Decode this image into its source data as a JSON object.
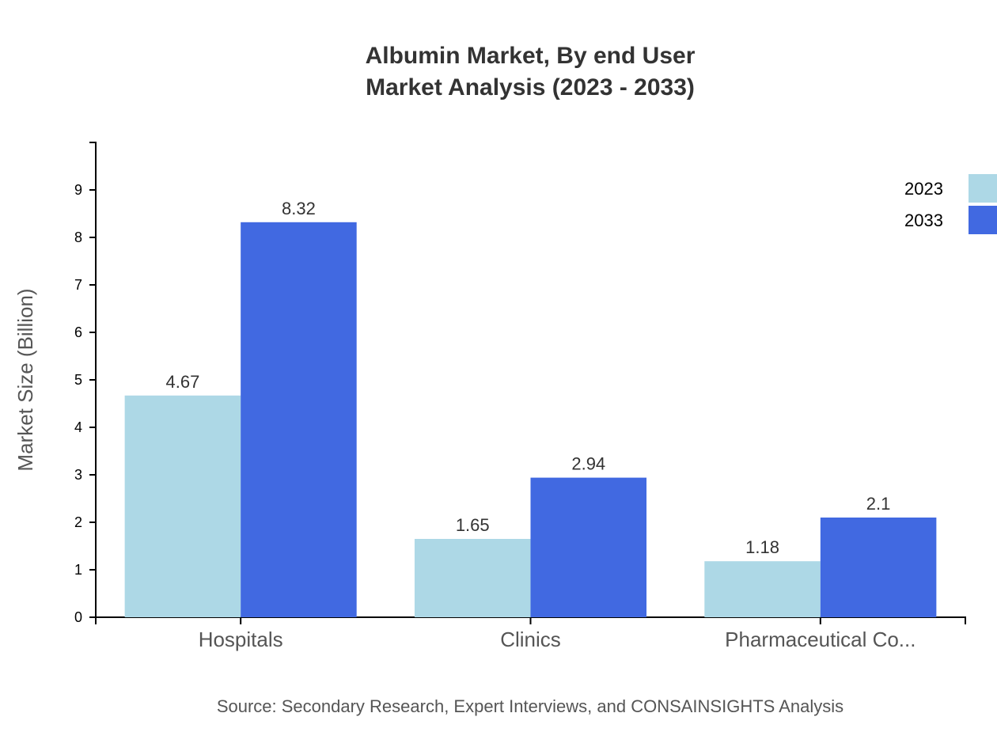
{
  "chart_data": {
    "type": "bar",
    "title": "Albumin Market, By end User",
    "subtitle": "Market Analysis (2023 - 2033)",
    "xlabel": "",
    "ylabel": "Market Size (Billion)",
    "ylim": [
      0,
      10
    ],
    "yticks": [
      0,
      1,
      2,
      3,
      4,
      5,
      6,
      7,
      8,
      9
    ],
    "categories": [
      "Hospitals",
      "Clinics",
      "Pharmaceutical Co..."
    ],
    "series": [
      {
        "name": "2023",
        "values": [
          4.67,
          1.65,
          1.18
        ],
        "color": "#add8e6"
      },
      {
        "name": "2033",
        "values": [
          8.32,
          2.94,
          2.1
        ],
        "color": "#4169e1"
      }
    ],
    "grid": false,
    "legend_position": "top-right",
    "source": "Source: Secondary Research, Expert Interviews, and CONSAINSIGHTS Analysis"
  }
}
